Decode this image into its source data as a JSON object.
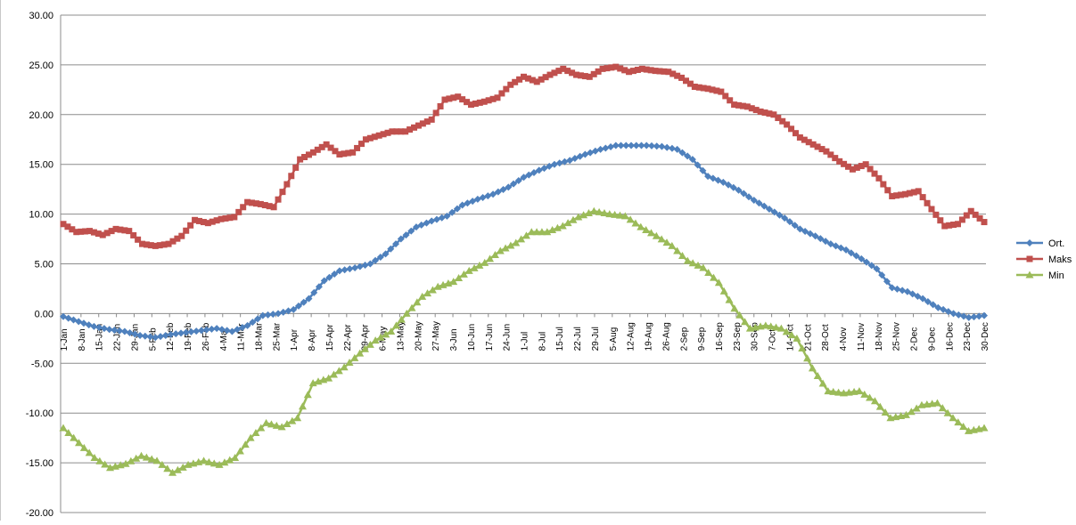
{
  "chart_data": {
    "type": "line",
    "title": "",
    "xlabel": "",
    "ylabel": "",
    "ylim": [
      -20,
      30
    ],
    "y_ticks": [
      "30.00",
      "25.00",
      "20.00",
      "15.00",
      "10.00",
      "5.00",
      "0.00",
      "-5.00",
      "-10.00",
      "-15.00",
      "-20.00"
    ],
    "x_ticks": [
      "1-Jan",
      "8-Jan",
      "15-Jan",
      "22-Jan",
      "29-Jan",
      "5-Feb",
      "12-Feb",
      "19-Feb",
      "26-Feb",
      "4-Mar",
      "11-Mar",
      "18-Mar",
      "25-Mar",
      "1-Apr",
      "8-Apr",
      "15-Apr",
      "22-Apr",
      "29-Apr",
      "6-May",
      "13-May",
      "20-May",
      "27-May",
      "3-Jun",
      "10-Jun",
      "17-Jun",
      "24-Jun",
      "1-Jul",
      "8-Jul",
      "15-Jul",
      "22-Jul",
      "29-Jul",
      "5-Aug",
      "12-Aug",
      "19-Aug",
      "26-Aug",
      "2-Sep",
      "9-Sep",
      "16-Sep",
      "23-Sep",
      "30-Sep",
      "7-Oct",
      "14-Oct",
      "21-Oct",
      "28-Oct",
      "4-Nov",
      "11-Nov",
      "18-Nov",
      "25-Nov",
      "2-Dec",
      "9-Dec",
      "16-Dec",
      "23-Dec",
      "30-Dec"
    ],
    "grid": true,
    "legend_position": "right",
    "series": [
      {
        "name": "Ort.",
        "color": "#4f81bd",
        "marker": "diamond",
        "values": [
          -0.3,
          -0.8,
          -1.3,
          -1.6,
          -1.8,
          -2.2,
          -2.4,
          -2.1,
          -1.9,
          -1.7,
          -1.5,
          -1.8,
          -1.2,
          -0.2,
          0.0,
          0.4,
          1.5,
          3.3,
          4.3,
          4.6,
          5.0,
          6.0,
          7.5,
          8.7,
          9.3,
          9.8,
          10.9,
          11.5,
          12.0,
          12.7,
          13.7,
          14.4,
          15.0,
          15.4,
          16.0,
          16.5,
          16.9,
          16.9,
          16.9,
          16.8,
          16.5,
          15.5,
          13.8,
          13.2,
          12.4,
          11.4,
          10.5,
          9.6,
          8.5,
          7.8,
          7.0,
          6.4,
          5.5,
          4.5,
          2.6,
          2.2,
          1.5,
          0.6,
          0.0,
          -0.4,
          -0.2
        ]
      },
      {
        "name": "Maks",
        "color": "#c0504d",
        "marker": "square",
        "values": [
          9.0,
          8.2,
          8.3,
          7.9,
          8.5,
          8.3,
          7.0,
          6.8,
          7.0,
          7.8,
          9.4,
          9.1,
          9.5,
          9.7,
          11.2,
          11.0,
          10.7,
          13.0,
          15.5,
          16.2,
          17.0,
          16.0,
          16.2,
          17.5,
          17.9,
          18.3,
          18.3,
          18.9,
          19.5,
          21.5,
          21.8,
          21.0,
          21.3,
          21.7,
          23.0,
          23.8,
          23.3,
          24.0,
          24.6,
          24.0,
          23.8,
          24.6,
          24.8,
          24.3,
          24.6,
          24.4,
          24.3,
          23.7,
          22.8,
          22.6,
          22.3,
          21.0,
          20.8,
          20.3,
          20.0,
          19.0,
          17.7,
          17.0,
          16.3,
          15.3,
          14.5,
          15.0,
          13.6,
          11.8,
          12.0,
          12.3,
          10.5,
          8.8,
          9.0,
          10.3,
          9.2
        ]
      },
      {
        "name": "Min",
        "color": "#9bbb59",
        "marker": "triangle",
        "values": [
          -11.5,
          -13.0,
          -14.5,
          -15.5,
          -15.1,
          -14.3,
          -14.8,
          -16.0,
          -15.2,
          -14.8,
          -15.2,
          -14.5,
          -12.5,
          -11.0,
          -11.4,
          -10.5,
          -7.0,
          -6.5,
          -5.4,
          -4.0,
          -2.7,
          -1.8,
          0.0,
          1.7,
          2.7,
          3.2,
          4.3,
          5.1,
          6.3,
          7.1,
          8.2,
          8.2,
          8.8,
          9.7,
          10.3,
          10.0,
          9.8,
          8.7,
          7.8,
          6.8,
          5.3,
          4.6,
          3.1,
          0.5,
          -1.5,
          -1.2,
          -1.5,
          -2.5,
          -5.5,
          -7.8,
          -8.0,
          -7.8,
          -8.8,
          -10.5,
          -10.2,
          -9.2,
          -9.0,
          -10.5,
          -11.8,
          -11.5
        ]
      }
    ]
  }
}
